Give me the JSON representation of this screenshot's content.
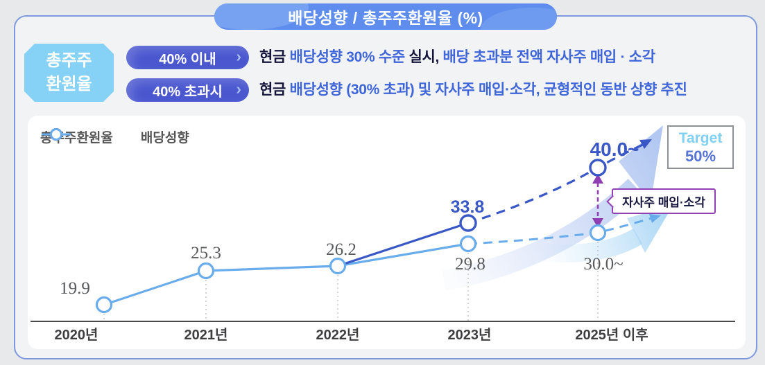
{
  "header": {
    "title": "배당성향 / 총주주환원율 (%)"
  },
  "policy": {
    "label_box": {
      "lines": [
        "총주주",
        "환원율"
      ]
    },
    "rules": [
      {
        "pill": "40% 이내",
        "chevron": "›",
        "segments": [
          {
            "text": "현금 ",
            "blue": false
          },
          {
            "text": "배당성향 30% 수준 ",
            "blue": true
          },
          {
            "text": "실시, ",
            "blue": false
          },
          {
            "text": "배당 초과분 전액 자사주 매입 · 소각",
            "blue": true
          }
        ]
      },
      {
        "pill": "40% 초과시",
        "chevron": "›",
        "segments": [
          {
            "text": "현금 ",
            "blue": false
          },
          {
            "text": "배당성향 (30% 초과) 및 자사주 매입·소각, 균형적인 동반 상향 추진",
            "blue": true
          }
        ]
      }
    ]
  },
  "chart": {
    "legend": [
      {
        "label": "총주주환원율",
        "color": "#3a57c6"
      },
      {
        "label": "배당성향",
        "color": "#69acec"
      }
    ],
    "target_box": {
      "line1": "Target",
      "line2": "50%"
    },
    "buyback_label": "자사주 매입·소각"
  },
  "chart_data": {
    "type": "line",
    "title": "배당성향 / 총주주환원율 (%)",
    "unit": "%",
    "categories": [
      "2020년",
      "2021년",
      "2022년",
      "2023년",
      "2025년 이후"
    ],
    "series": [
      {
        "name": "총주주환원율",
        "color": "#3a57c6",
        "values": [
          19.9,
          25.3,
          26.2,
          33.8,
          40.0
        ],
        "value_labels": [
          "19.9",
          "25.3",
          "26.2",
          "33.8",
          "40.0~"
        ],
        "projection_start_index": 3
      },
      {
        "name": "배당성향",
        "color": "#69acec",
        "values": [
          19.9,
          25.3,
          26.2,
          29.8,
          30.0
        ],
        "value_labels": [
          "19.9",
          "25.3",
          "26.2",
          "29.8",
          "30.0~"
        ],
        "projection_start_index": 3
      }
    ],
    "shared_points_note": "2020-2022 values are identical for both series (single visible line)",
    "annotations": [
      {
        "type": "target-box",
        "text": "Target 50%"
      },
      {
        "type": "callout",
        "text": "자사주 매입·소각"
      }
    ],
    "xlabel": "",
    "ylabel": "",
    "grid": "vertical-dotted",
    "legend_position": "top-left"
  },
  "colors": {
    "header_blue": "#5e8ded",
    "pill_indigo": "#4a57cf",
    "box_cyan": "#85d2f6",
    "text_navy": "#14143a",
    "text_blue": "#3f66d8",
    "tsr_line": "#3a57c6",
    "payout_line": "#69acec",
    "purple_arrow": "#8f3fb2",
    "target_cyan": "#7fd0f5",
    "target_blue": "#5673d8",
    "panel_border": "#7d99de"
  }
}
